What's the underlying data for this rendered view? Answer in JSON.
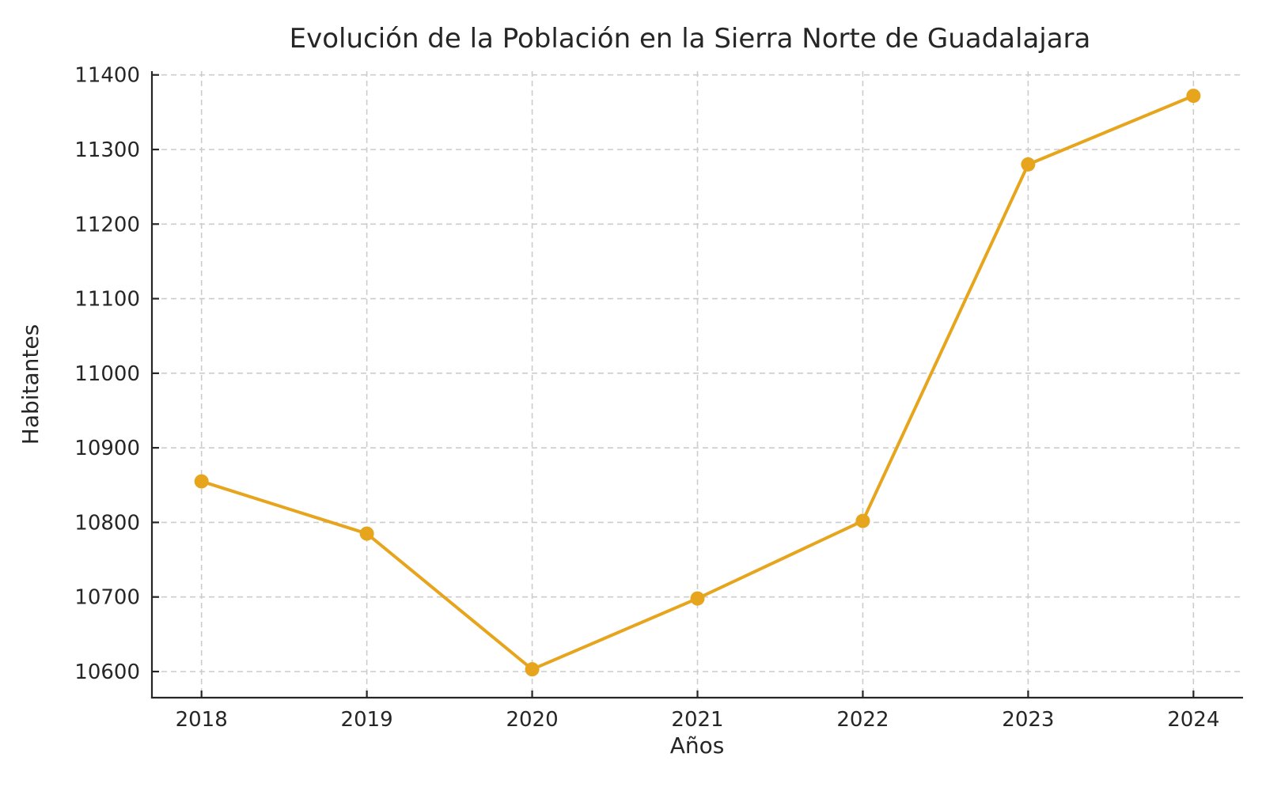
{
  "chart_data": {
    "type": "line",
    "title": "Evolución de la Población en la Sierra Norte de Guadalajara",
    "xlabel": "Años",
    "ylabel": "Habitantes",
    "categories": [
      2018,
      2019,
      2020,
      2021,
      2022,
      2023,
      2024
    ],
    "series": [
      {
        "name": "Habitantes",
        "values": [
          10855,
          10785,
          10603,
          10698,
          10802,
          11280,
          11372
        ]
      }
    ],
    "yticks": [
      10600,
      10700,
      10800,
      10900,
      11000,
      11100,
      11200,
      11300,
      11400
    ],
    "xlim": [
      2017.7,
      2024.3
    ],
    "ylim": [
      10565,
      11405
    ],
    "grid": true,
    "grid_style": "dashed",
    "legend_position": "none",
    "colors": {
      "line": "#E6A51C",
      "marker": "#E6A51C",
      "grid": "#cccccc",
      "spine": "#262626",
      "text": "#262626",
      "background": "#ffffff"
    },
    "marker_shape": "circle",
    "marker_radius": 9,
    "line_width": 4
  }
}
